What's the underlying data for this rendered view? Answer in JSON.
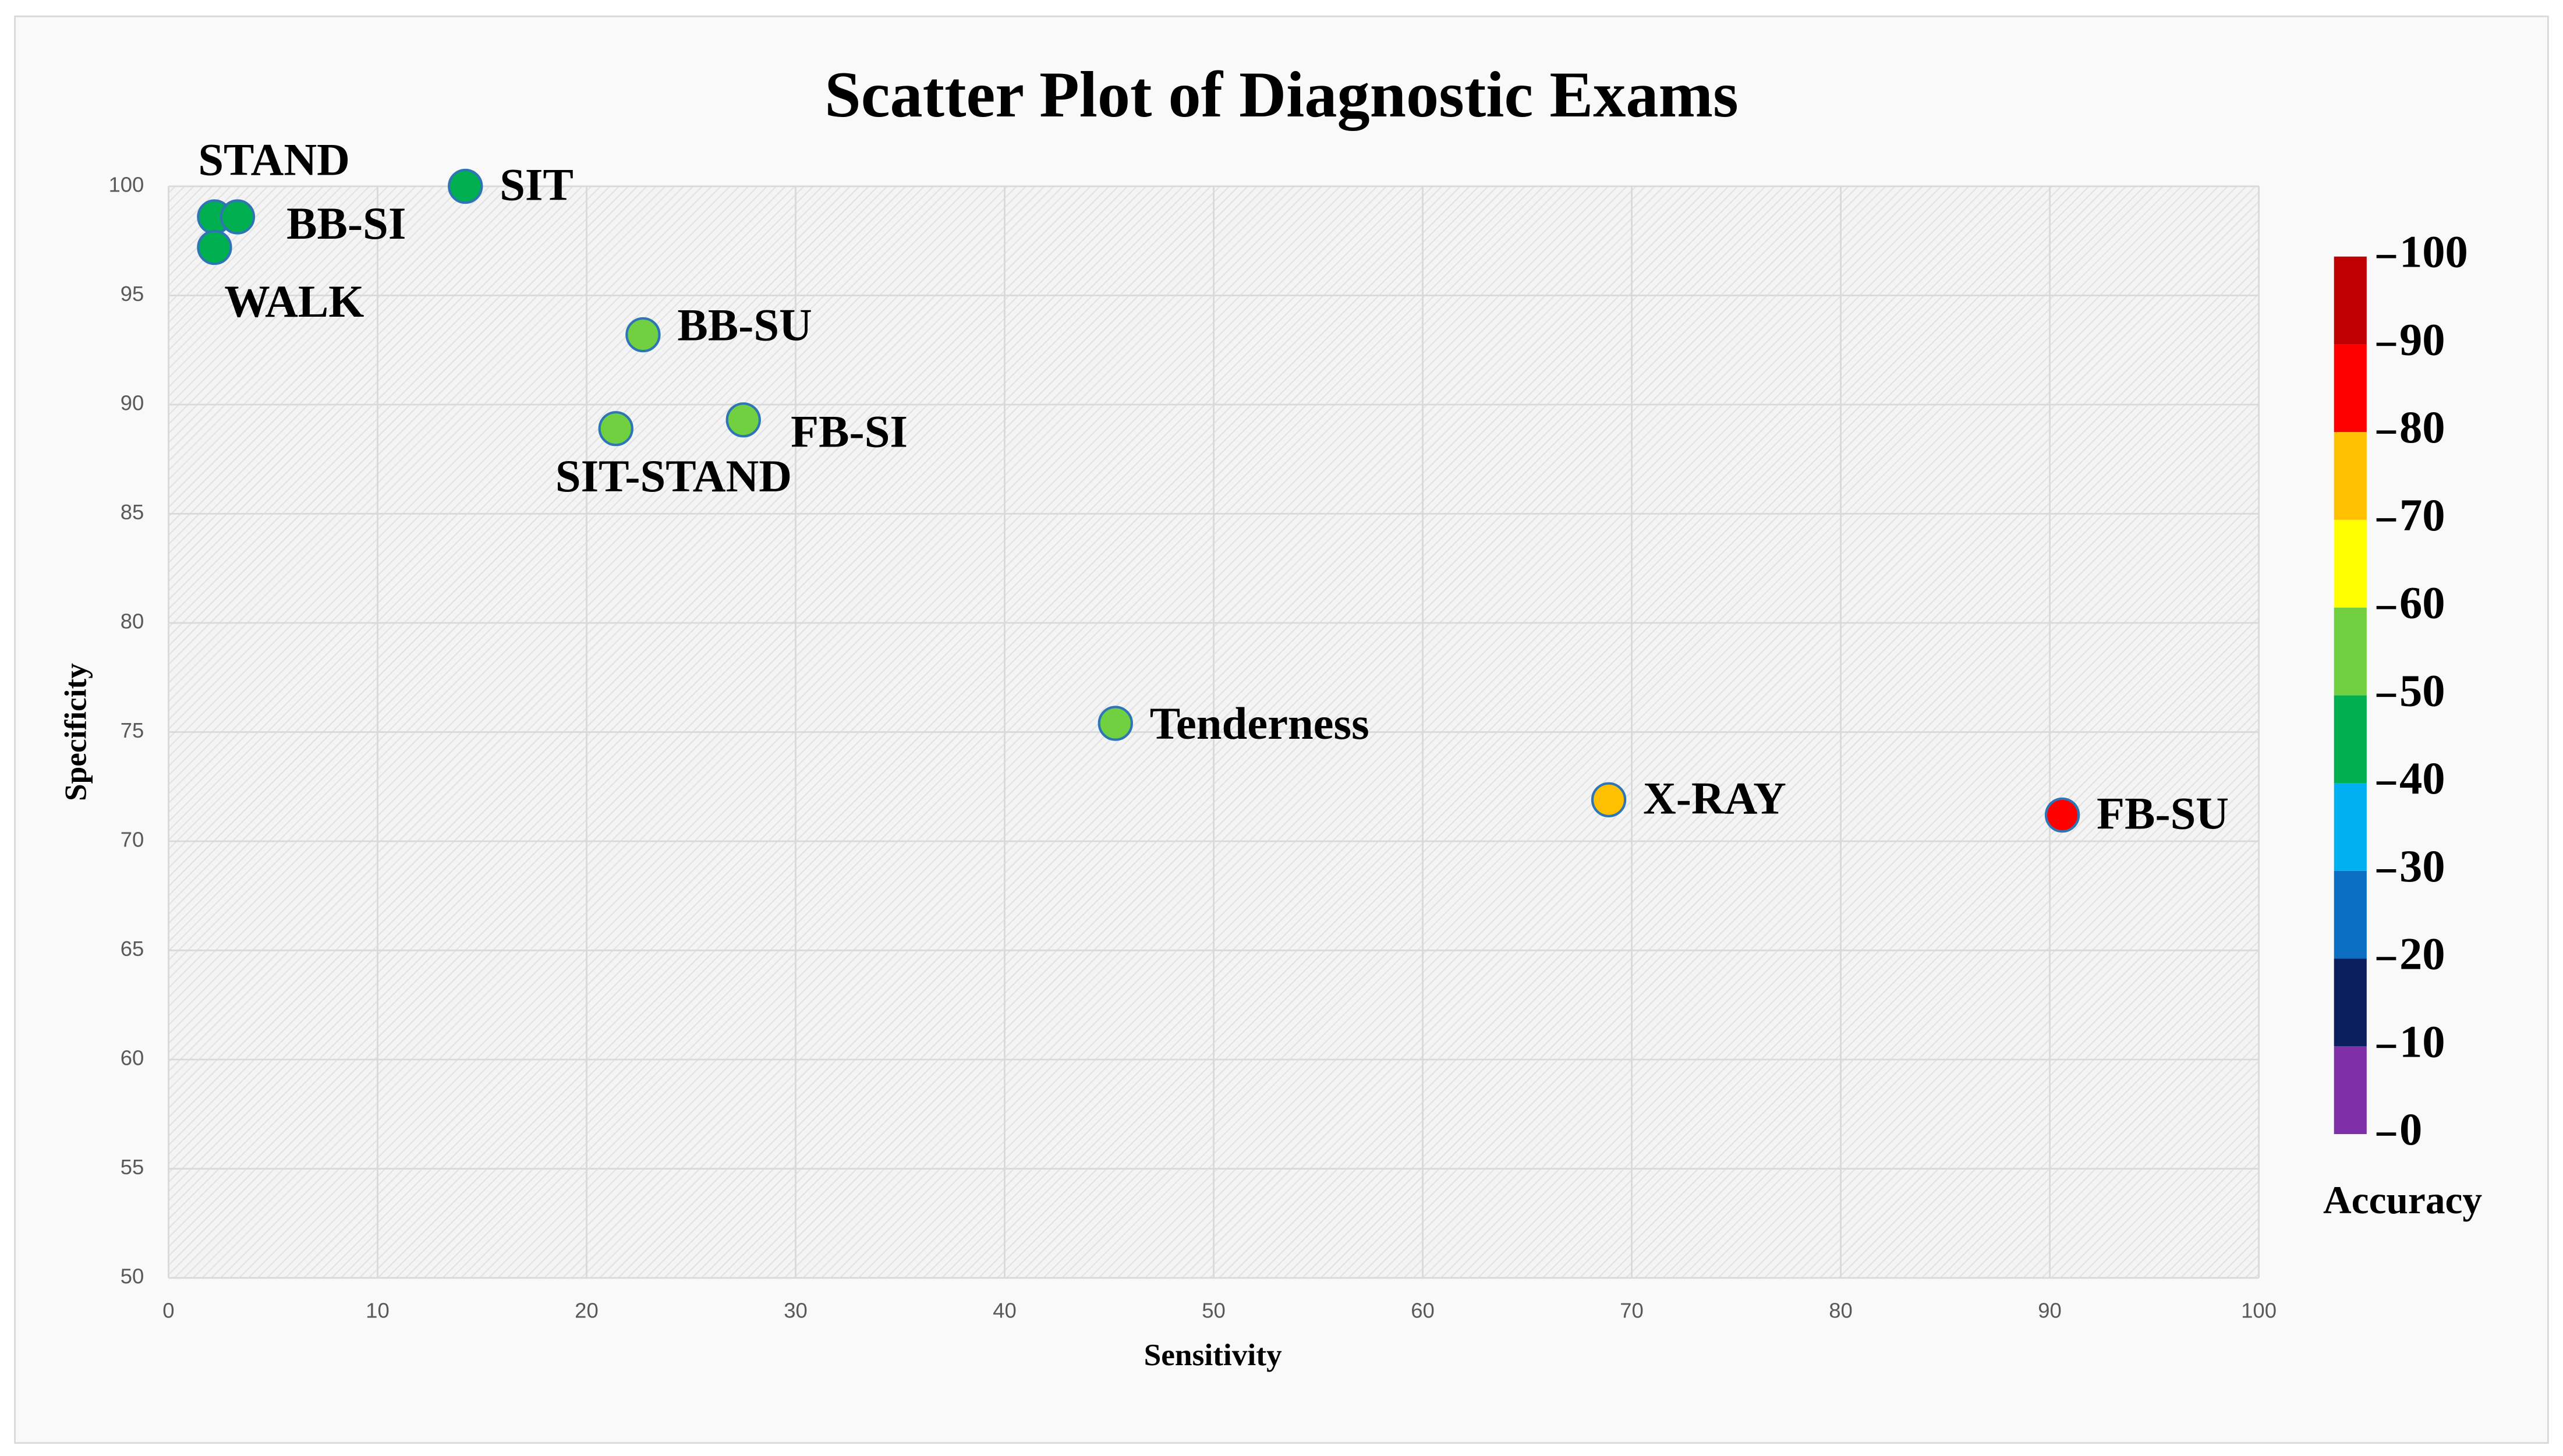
{
  "chart_data": {
    "type": "scatter",
    "title": "Scatter Plot of Diagnostic Exams",
    "x_label": "Sensitivity",
    "y_label": "Specificity",
    "labels": [
      "STAND",
      "BB-SI",
      "WALK",
      "SIT",
      "BB-SU",
      "SIT-STAND",
      "FB-SI",
      "Tenderness",
      "X-RAY",
      "FB-SU"
    ],
    "x": [
      2.2,
      3.3,
      2.2,
      14.2,
      22.7,
      21.4,
      27.5,
      45.3,
      68.9,
      90.6
    ],
    "values": [
      98.6,
      98.6,
      97.2,
      100,
      93.2,
      88.9,
      89.3,
      75.4,
      71.9,
      71.2
    ],
    "accuracy": [
      45,
      45,
      45,
      45,
      55,
      55,
      55,
      55,
      75,
      85
    ],
    "xlim": [
      0,
      100
    ],
    "xticks": [
      0,
      10,
      20,
      30,
      40,
      50,
      60,
      70,
      80,
      90,
      100
    ],
    "ylim": [
      50,
      100
    ],
    "yticks": [
      50,
      55,
      60,
      65,
      70,
      75,
      80,
      85,
      90,
      95,
      100
    ],
    "grid": true,
    "colorbar": {
      "label": "Accuracy",
      "lim": [
        0,
        100
      ],
      "ticks": [
        0,
        10,
        20,
        30,
        40,
        50,
        60,
        70,
        80,
        90,
        100
      ],
      "colors": [
        "#7f2fa8",
        "#0b1f5e",
        "#0a6fc2",
        "#00b0f0",
        "#00b050",
        "#70d040",
        "#ffff00",
        "#ffc000",
        "#ff0000",
        "#c00000"
      ]
    }
  }
}
